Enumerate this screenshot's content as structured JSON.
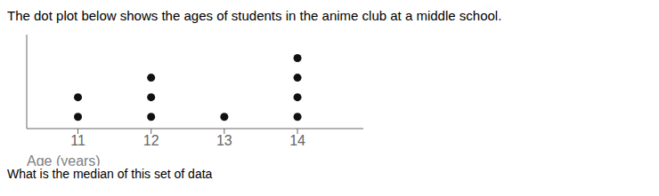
{
  "chart_data": {
    "type": "dot_plot",
    "title": "The dot plot below shows the ages of students in the anime club at a middle school.",
    "subtitle": "What is the median of this set of data",
    "x_label": "Age (years)",
    "x": [
      11,
      12,
      13,
      14
    ],
    "values": [
      2,
      3,
      1,
      4
    ],
    "color": "#111111",
    "xlim": [
      10.3,
      14.9
    ],
    "xticks": [
      11,
      12,
      13,
      14
    ],
    "ylim": [
      0.4,
      5.2
    ],
    "tick_labels": "x",
    "grid": false
  }
}
